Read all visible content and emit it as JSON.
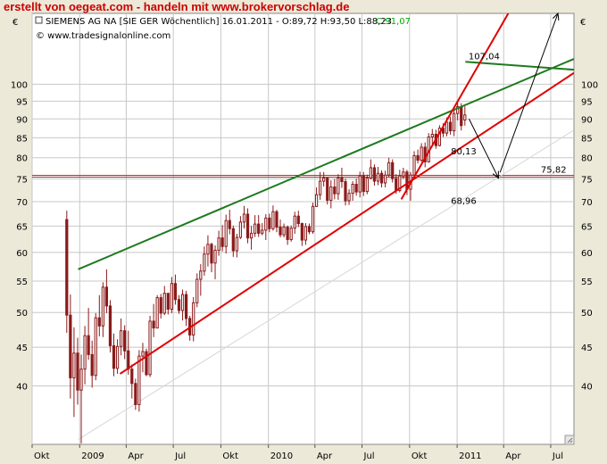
{
  "banner": {
    "text": "erstellt von oegeat.com - handeln mit www.brokervorschlag.de"
  },
  "header": {
    "instrument": "SIEMENS AG NA [SIE GER  Wöchentlich] 16.01.2011 - O:89,72 H:93,50 L:88,23",
    "close_label": "C:91,07",
    "copyright": "© www.tradesignalonline.com",
    "currency_left": "€",
    "currency_right": "€"
  },
  "colors": {
    "plot_bg": "#ffffff",
    "outer_bg": "#ece9d8",
    "grid": "#c8c8c8",
    "candle": "#8b1a1a",
    "green_line": "#1e7a1e",
    "red_line": "#e00000",
    "gray_line": "#d6d6d6",
    "hline": "#b03030",
    "label_red": "#cc2222",
    "label_gray": "#c8c8c8",
    "close_green": "#00aa00"
  },
  "chart_data": {
    "type": "candlestick",
    "y_scale": "log",
    "ylim": [
      33.5,
      124
    ],
    "x_range": [
      "2008-10-01",
      "2011-08-15"
    ],
    "y_ticks": [
      40,
      45,
      50,
      55,
      60,
      65,
      70,
      75,
      80,
      85,
      90,
      95,
      100
    ],
    "x_ticks": [
      {
        "label": "Okt",
        "date": "2008-10-01"
      },
      {
        "label": "2009",
        "date": "2009-01-01"
      },
      {
        "label": "Apr",
        "date": "2009-04-01"
      },
      {
        "label": "Jul",
        "date": "2009-07-01"
      },
      {
        "label": "Okt",
        "date": "2009-10-01"
      },
      {
        "label": "2010",
        "date": "2010-01-01"
      },
      {
        "label": "Apr",
        "date": "2010-04-01"
      },
      {
        "label": "Jul",
        "date": "2010-07-01"
      },
      {
        "label": "Okt",
        "date": "2010-10-01"
      },
      {
        "label": "2011",
        "date": "2011-01-01"
      },
      {
        "label": "Apr",
        "date": "2011-04-01"
      },
      {
        "label": "Jul",
        "date": "2011-07-01"
      }
    ],
    "lines": [
      {
        "color": "green",
        "from": {
          "date": "2008-12-29",
          "value": 57
        },
        "to": {
          "date": "2011-08-15",
          "value": 108
        }
      },
      {
        "color": "green",
        "from": {
          "date": "2011-01-17",
          "value": 107.04
        },
        "to": {
          "date": "2011-08-15",
          "value": 104.5
        }
      },
      {
        "color": "red",
        "from": {
          "date": "2009-03-20",
          "value": 41.5
        },
        "to": {
          "date": "2011-08-15",
          "value": 103.5
        }
      },
      {
        "color": "red",
        "from": {
          "date": "2010-09-15",
          "value": 70.5
        },
        "to": {
          "date": "2011-04-10",
          "value": 124
        }
      },
      {
        "color": "gray",
        "from": {
          "date": "2008-12-29",
          "value": 34
        },
        "to": {
          "date": "2011-08-15",
          "value": 87
        }
      }
    ],
    "hlines": [
      {
        "value": 75.82,
        "label": "75,82"
      }
    ],
    "value_labels": [
      {
        "text": "107,04",
        "date": "2011-01-23",
        "value": 107.04,
        "color": "green"
      },
      {
        "text": "80,13",
        "date": "2010-12-20",
        "value": 80.13,
        "color": "red"
      },
      {
        "text": "68,96",
        "date": "2010-12-20",
        "value": 68.96,
        "color": "gray"
      },
      {
        "text": "75,82",
        "date": "2011-06-12",
        "value": 75.82,
        "color": "red"
      }
    ],
    "arrows": [
      {
        "from": {
          "date": "2011-01-24",
          "value": 90
        },
        "to": {
          "date": "2011-03-22",
          "value": 75.2
        }
      },
      {
        "from": {
          "date": "2011-03-25",
          "value": 76.5
        },
        "to": {
          "date": "2011-07-15",
          "value": 124
        }
      }
    ],
    "candles": [
      [
        66.3,
        68.1,
        47.0,
        49.6
      ],
      [
        49.6,
        52.8,
        38.5,
        41.0
      ],
      [
        41.0,
        47.8,
        36.4,
        44.2
      ],
      [
        44.2,
        46.3,
        37.8,
        39.5
      ],
      [
        39.5,
        44.0,
        33.6,
        42.1
      ],
      [
        42.1,
        48.0,
        40.2,
        46.6
      ],
      [
        46.6,
        50.7,
        43.3,
        44.0
      ],
      [
        44.0,
        45.9,
        39.8,
        41.3
      ],
      [
        41.3,
        49.9,
        40.7,
        49.2
      ],
      [
        49.2,
        52.7,
        46.5,
        48.0
      ],
      [
        48.0,
        54.8,
        46.4,
        54.0
      ],
      [
        54.0,
        57.0,
        49.9,
        51.0
      ],
      [
        51.0,
        51.9,
        44.3,
        45.2
      ],
      [
        45.2,
        46.9,
        41.2,
        42.2
      ],
      [
        42.2,
        46.1,
        41.5,
        45.1
      ],
      [
        45.1,
        49.1,
        43.9,
        47.3
      ],
      [
        47.3,
        48.1,
        43.4,
        44.5
      ],
      [
        44.5,
        47.3,
        41.4,
        42.1
      ],
      [
        42.1,
        42.7,
        38.5,
        40.3
      ],
      [
        40.3,
        40.9,
        37.2,
        37.8
      ],
      [
        37.8,
        44.6,
        37.0,
        43.8
      ],
      [
        43.8,
        45.6,
        41.7,
        44.4
      ],
      [
        44.4,
        44.8,
        41.2,
        41.4
      ],
      [
        41.4,
        49.5,
        41.1,
        48.7
      ],
      [
        48.7,
        51.3,
        46.4,
        47.7
      ],
      [
        47.7,
        52.7,
        47.7,
        52.3
      ],
      [
        52.3,
        52.9,
        49.1,
        49.9
      ],
      [
        49.9,
        54.2,
        49.6,
        53.0
      ],
      [
        53.0,
        53.0,
        49.7,
        50.5
      ],
      [
        50.5,
        55.7,
        49.9,
        54.6
      ],
      [
        54.6,
        56.1,
        51.2,
        52.0
      ],
      [
        52.0,
        52.7,
        49.8,
        50.3
      ],
      [
        50.3,
        53.6,
        48.8,
        52.8
      ],
      [
        52.8,
        53.4,
        48.0,
        49.1
      ],
      [
        49.1,
        49.5,
        45.9,
        46.7
      ],
      [
        46.7,
        52.4,
        45.8,
        51.5
      ],
      [
        51.5,
        56.3,
        50.8,
        55.3
      ],
      [
        55.3,
        57.9,
        52.6,
        56.7
      ],
      [
        56.7,
        61.1,
        55.9,
        59.7
      ],
      [
        59.7,
        63.2,
        57.5,
        61.5
      ],
      [
        61.5,
        61.8,
        56.5,
        58.1
      ],
      [
        58.1,
        61.3,
        55.3,
        60.4
      ],
      [
        60.4,
        64.1,
        59.4,
        62.7
      ],
      [
        62.7,
        65.2,
        60.2,
        61.1
      ],
      [
        61.1,
        67.3,
        59.8,
        66.1
      ],
      [
        66.1,
        68.3,
        63.4,
        64.5
      ],
      [
        64.5,
        65.1,
        59.2,
        60.3
      ],
      [
        60.3,
        63.5,
        59.1,
        62.8
      ],
      [
        62.8,
        67.0,
        62.5,
        65.8
      ],
      [
        65.8,
        69.1,
        64.5,
        67.4
      ],
      [
        67.4,
        68.6,
        61.7,
        62.7
      ],
      [
        62.7,
        65.0,
        60.5,
        63.6
      ],
      [
        63.6,
        67.2,
        62.9,
        65.4
      ],
      [
        65.4,
        67.2,
        62.9,
        63.6
      ],
      [
        63.6,
        65.6,
        63.2,
        64.2
      ],
      [
        64.2,
        67.4,
        62.3,
        66.6
      ],
      [
        66.6,
        67.5,
        63.8,
        64.5
      ],
      [
        64.5,
        69.2,
        64.1,
        67.9
      ],
      [
        67.9,
        68.3,
        63.8,
        64.8
      ],
      [
        64.8,
        66.3,
        62.8,
        63.3
      ],
      [
        63.3,
        65.5,
        62.8,
        64.8
      ],
      [
        64.8,
        65.1,
        61.4,
        62.4
      ],
      [
        62.4,
        65.1,
        62.0,
        64.6
      ],
      [
        64.6,
        67.9,
        63.5,
        67.0
      ],
      [
        67.0,
        68.1,
        64.8,
        65.5
      ],
      [
        65.5,
        65.7,
        61.2,
        62.3
      ],
      [
        62.3,
        65.6,
        61.4,
        64.9
      ],
      [
        64.9,
        65.5,
        63.4,
        63.9
      ],
      [
        63.9,
        69.8,
        63.5,
        69.0
      ],
      [
        69.0,
        73.1,
        68.9,
        71.5
      ],
      [
        71.5,
        76.6,
        70.4,
        74.5
      ],
      [
        74.5,
        76.6,
        73.3,
        75.2
      ],
      [
        75.2,
        75.3,
        69.4,
        70.3
      ],
      [
        70.3,
        74.7,
        68.6,
        73.2
      ],
      [
        73.2,
        75.0,
        70.5,
        71.7
      ],
      [
        71.7,
        76.1,
        70.4,
        75.2
      ],
      [
        75.2,
        77.6,
        73.0,
        74.4
      ],
      [
        74.4,
        75.1,
        69.2,
        70.2
      ],
      [
        70.2,
        72.7,
        69.3,
        71.8
      ],
      [
        71.8,
        74.5,
        70.2,
        73.8
      ],
      [
        73.8,
        75.1,
        71.3,
        72.1
      ],
      [
        72.1,
        76.7,
        70.9,
        75.7
      ],
      [
        75.7,
        76.6,
        71.2,
        72.2
      ],
      [
        72.2,
        76.0,
        71.6,
        75.2
      ],
      [
        75.2,
        79.6,
        74.9,
        77.6
      ],
      [
        77.6,
        78.4,
        73.5,
        74.5
      ],
      [
        74.5,
        77.8,
        73.6,
        76.3
      ],
      [
        76.3,
        77.0,
        73.1,
        74.1
      ],
      [
        74.1,
        76.9,
        73.1,
        75.9
      ],
      [
        75.9,
        80.0,
        75.4,
        78.8
      ],
      [
        78.8,
        79.6,
        74.2,
        75.1
      ],
      [
        75.1,
        76.1,
        71.7,
        72.4
      ],
      [
        72.4,
        77.1,
        72.0,
        75.7
      ],
      [
        75.7,
        77.6,
        75.0,
        76.6
      ],
      [
        76.6,
        77.1,
        71.4,
        72.7
      ],
      [
        72.7,
        76.6,
        70.2,
        75.9
      ],
      [
        75.9,
        81.6,
        75.5,
        80.5
      ],
      [
        80.5,
        82.0,
        78.6,
        79.4
      ],
      [
        79.4,
        83.6,
        79.0,
        82.6
      ],
      [
        82.6,
        83.8,
        77.7,
        79.0
      ],
      [
        79.0,
        86.2,
        78.8,
        85.2
      ],
      [
        85.2,
        87.3,
        83.4,
        85.9
      ],
      [
        85.9,
        87.1,
        82.2,
        83.0
      ],
      [
        83.0,
        88.3,
        82.8,
        87.5
      ],
      [
        87.5,
        88.8,
        85.2,
        86.2
      ],
      [
        86.2,
        90.4,
        85.4,
        89.1
      ],
      [
        89.1,
        90.6,
        85.8,
        86.8
      ],
      [
        86.8,
        93.0,
        85.4,
        91.5
      ],
      [
        91.5,
        94.9,
        89.6,
        93.4
      ],
      [
        93.4,
        94.4,
        86.9,
        88.2
      ],
      [
        89.7,
        93.5,
        88.2,
        91.1
      ]
    ]
  }
}
